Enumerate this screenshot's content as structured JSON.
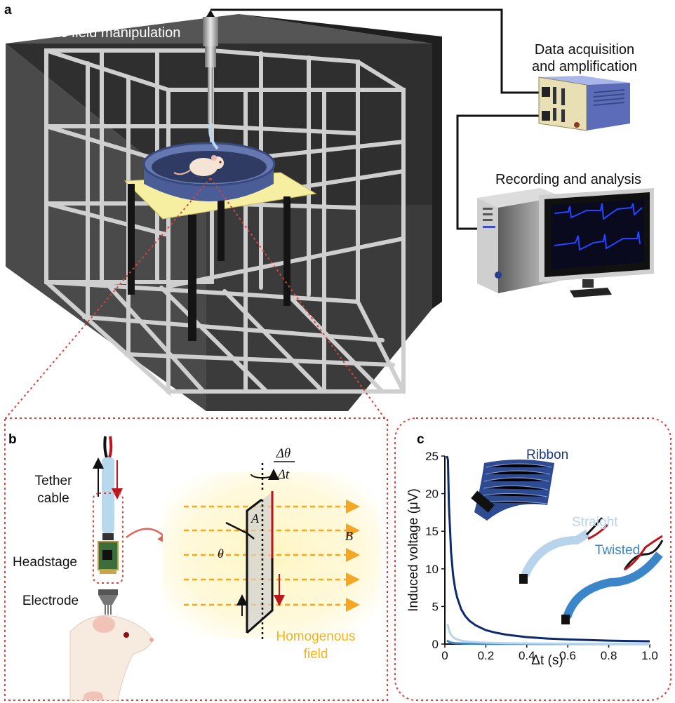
{
  "panel_a": {
    "letter": "a",
    "magnetic_label": "Magnetic field manipulation",
    "daq_label_line1": "Data acquisition",
    "daq_label_line2": "and amplification",
    "recording_label": "Recording and analysis"
  },
  "panel_b": {
    "letter": "b",
    "tether_line1": "Tether",
    "tether_line2": "cable",
    "headstage": "Headstage",
    "electrode": "Electrode",
    "delta_theta": "Δθ",
    "delta_t": "Δt",
    "area_symbol": "A",
    "field_symbol": "B",
    "angle_symbol": "θ",
    "homog_line1": "Homogenous",
    "homog_line2": "field",
    "colors": {
      "field_glow": "#fff4b0",
      "field_arrow": "#f5a623",
      "wire_red": "#c0141c"
    }
  },
  "panel_c": {
    "letter": "c",
    "cable_labels": {
      "ribbon": "Ribbon",
      "straight": "Straight",
      "twisted": "Twisted"
    },
    "chart_data": {
      "type": "line",
      "xlabel": "Δt (s)",
      "ylabel": "Induced voltage (μV)",
      "xlim": [
        0,
        1.0
      ],
      "ylim": [
        0,
        25
      ],
      "xticks": [
        "0",
        "0.2",
        "0.4",
        "0.6",
        "0.8",
        "1.0"
      ],
      "yticks": [
        "0",
        "5",
        "10",
        "15",
        "20",
        "25"
      ],
      "x": [
        0.01,
        0.015,
        0.02,
        0.03,
        0.04,
        0.05,
        0.06,
        0.08,
        0.1,
        0.12,
        0.15,
        0.2,
        0.25,
        0.3,
        0.4,
        0.5,
        0.6,
        0.7,
        0.8,
        0.9,
        1.0
      ],
      "series": [
        {
          "name": "Ribbon",
          "color": "#0d2a6e",
          "values": [
            25,
            24.5,
            18.5,
            12.3,
            9.2,
            7.4,
            6.2,
            4.6,
            3.7,
            3.1,
            2.5,
            1.85,
            1.5,
            1.25,
            0.92,
            0.74,
            0.62,
            0.53,
            0.46,
            0.41,
            0.37
          ]
        },
        {
          "name": "Straight",
          "color": "#b8d4ec",
          "values": [
            2.6,
            2.5,
            1.85,
            1.23,
            0.92,
            0.74,
            0.62,
            0.46,
            0.37,
            0.31,
            0.25,
            0.19,
            0.15,
            0.12,
            0.09,
            0.07,
            0.06,
            0.05,
            0.05,
            0.04,
            0.04
          ]
        },
        {
          "name": "Twisted",
          "color": "#3a86c8",
          "values": [
            0.45,
            0.4,
            0.3,
            0.2,
            0.15,
            0.12,
            0.1,
            0.08,
            0.06,
            0.05,
            0.04,
            0.03,
            0.03,
            0.02,
            0.02,
            0.01,
            0.01,
            0.01,
            0.01,
            0.01,
            0.01
          ]
        }
      ]
    }
  }
}
